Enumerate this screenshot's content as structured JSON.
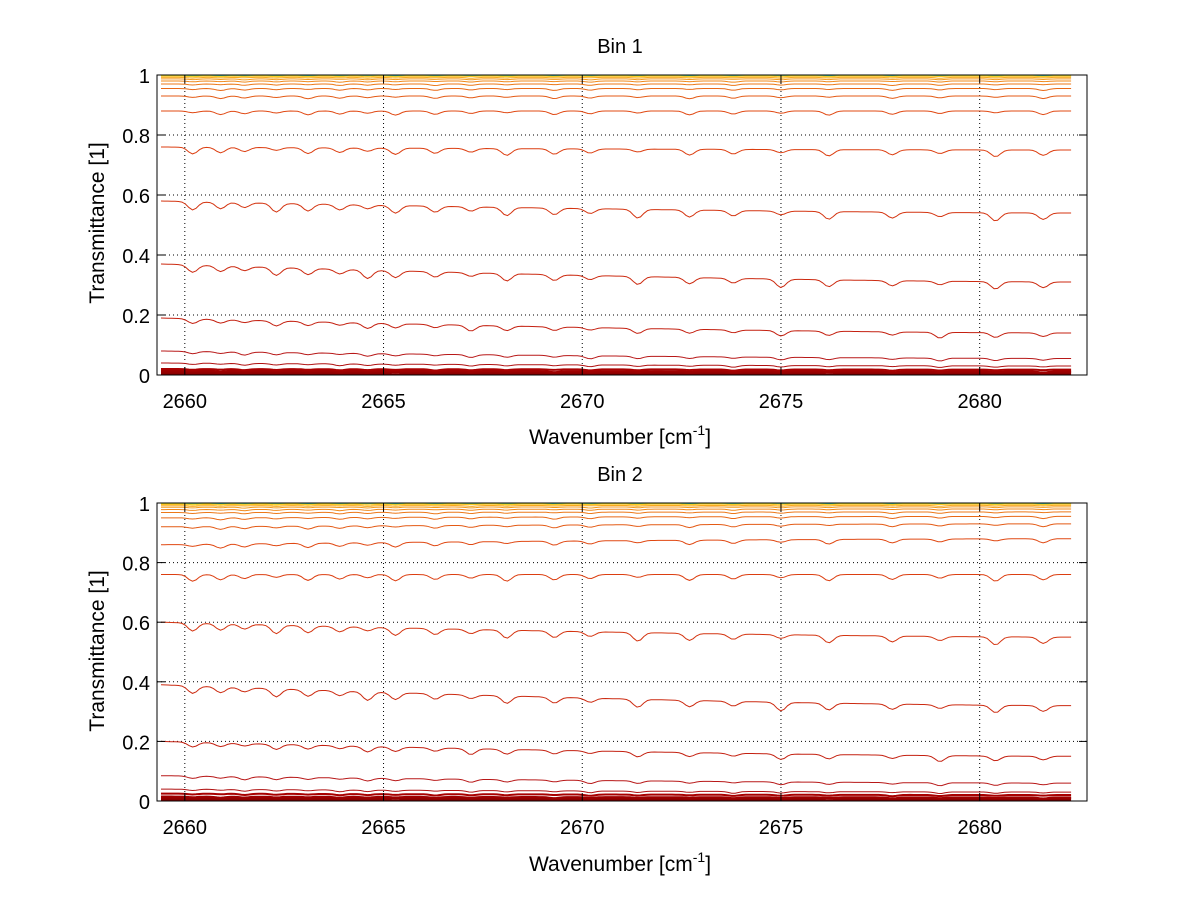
{
  "chart_data": [
    {
      "type": "line",
      "title": "Bin 1",
      "xlabel": "Wavenumber [cm",
      "xlabel_sup": "-1",
      "xlabel_end": "]",
      "ylabel": "Transmittance [1]",
      "xlim": [
        2659.3,
        2682.7
      ],
      "ylim": [
        0,
        1
      ],
      "xticks": [
        2660,
        2665,
        2670,
        2675,
        2680
      ],
      "xtick_labels": [
        "2660",
        "2665",
        "2670",
        "2675",
        "2680"
      ],
      "yticks": [
        0,
        0.2,
        0.4,
        0.6,
        0.8,
        1
      ],
      "ytick_labels": [
        "0",
        "0.2",
        "0.4",
        "0.6",
        "0.8",
        "1"
      ],
      "grid": true,
      "x_range": [
        2659.4,
        2682.3
      ],
      "absorption_lines": [
        2660.2,
        2660.9,
        2661.5,
        2662.3,
        2663.1,
        2663.9,
        2664.6,
        2665.3,
        2666.3,
        2667.2,
        2668.1,
        2669.3,
        2670.2,
        2671.4,
        2672.7,
        2673.8,
        2675.0,
        2676.2,
        2677.8,
        2679.0,
        2680.4,
        2681.6
      ],
      "series": [
        {
          "color": "#8b0000",
          "start": 0.005,
          "end": 0.005
        },
        {
          "color": "#940000",
          "start": 0.01,
          "end": 0.01
        },
        {
          "color": "#9e0000",
          "start": 0.015,
          "end": 0.012
        },
        {
          "color": "#a80000",
          "start": 0.02,
          "end": 0.018
        },
        {
          "color": "#b01010",
          "start": 0.04,
          "end": 0.03
        },
        {
          "color": "#b81818",
          "start": 0.08,
          "end": 0.055
        },
        {
          "color": "#c42010",
          "start": 0.19,
          "end": 0.14
        },
        {
          "color": "#cc2a10",
          "start": 0.37,
          "end": 0.31
        },
        {
          "color": "#d43410",
          "start": 0.58,
          "end": 0.54
        },
        {
          "color": "#dc3e10",
          "start": 0.76,
          "end": 0.75
        },
        {
          "color": "#e04812",
          "start": 0.88,
          "end": 0.88
        },
        {
          "color": "#e45a14",
          "start": 0.93,
          "end": 0.93
        },
        {
          "color": "#e86816",
          "start": 0.955,
          "end": 0.955
        },
        {
          "color": "#ec7818",
          "start": 0.97,
          "end": 0.97
        },
        {
          "color": "#f0881a",
          "start": 0.98,
          "end": 0.98
        },
        {
          "color": "#f4981c",
          "start": 0.987,
          "end": 0.987
        },
        {
          "color": "#f8aa1e",
          "start": 0.992,
          "end": 0.992
        },
        {
          "color": "#fcc020",
          "start": 0.996,
          "end": 0.996
        },
        {
          "color": "#ffd822",
          "start": 0.998,
          "end": 0.998
        },
        {
          "color": "#c8e040",
          "start": 0.999,
          "end": 0.999
        },
        {
          "color": "#40c8b0",
          "start": 1.0,
          "end": 1.0
        }
      ]
    },
    {
      "type": "line",
      "title": "Bin 2",
      "xlabel": "Wavenumber [cm",
      "xlabel_sup": "-1",
      "xlabel_end": "]",
      "ylabel": "Transmittance [1]",
      "xlim": [
        2659.3,
        2682.7
      ],
      "ylim": [
        0,
        1
      ],
      "xticks": [
        2660,
        2665,
        2670,
        2675,
        2680
      ],
      "xtick_labels": [
        "2660",
        "2665",
        "2670",
        "2675",
        "2680"
      ],
      "yticks": [
        0,
        0.2,
        0.4,
        0.6,
        0.8,
        1
      ],
      "ytick_labels": [
        "0",
        "0.2",
        "0.4",
        "0.6",
        "0.8",
        "1"
      ],
      "grid": true,
      "x_range": [
        2659.4,
        2682.3
      ],
      "absorption_lines": [
        2660.2,
        2660.9,
        2661.5,
        2662.3,
        2663.1,
        2663.9,
        2664.6,
        2665.3,
        2666.3,
        2667.2,
        2668.1,
        2669.3,
        2670.2,
        2671.4,
        2672.7,
        2673.8,
        2675.0,
        2676.2,
        2677.8,
        2679.0,
        2680.4,
        2681.6
      ],
      "series": [
        {
          "color": "#8b0000",
          "start": 0.005,
          "end": 0.005
        },
        {
          "color": "#940000",
          "start": 0.01,
          "end": 0.01
        },
        {
          "color": "#9e0000",
          "start": 0.015,
          "end": 0.012
        },
        {
          "color": "#a80000",
          "start": 0.025,
          "end": 0.02
        },
        {
          "color": "#b01010",
          "start": 0.04,
          "end": 0.03
        },
        {
          "color": "#b81818",
          "start": 0.085,
          "end": 0.06
        },
        {
          "color": "#c42010",
          "start": 0.2,
          "end": 0.15
        },
        {
          "color": "#cc2a10",
          "start": 0.39,
          "end": 0.32
        },
        {
          "color": "#d43410",
          "start": 0.6,
          "end": 0.55
        },
        {
          "color": "#dc3e10",
          "start": 0.76,
          "end": 0.76
        },
        {
          "color": "#e04812",
          "start": 0.86,
          "end": 0.88
        },
        {
          "color": "#e45a14",
          "start": 0.92,
          "end": 0.93
        },
        {
          "color": "#e86816",
          "start": 0.95,
          "end": 0.955
        },
        {
          "color": "#ec7818",
          "start": 0.968,
          "end": 0.97
        },
        {
          "color": "#f0881a",
          "start": 0.978,
          "end": 0.98
        },
        {
          "color": "#f4981c",
          "start": 0.986,
          "end": 0.987
        },
        {
          "color": "#f8aa1e",
          "start": 0.991,
          "end": 0.992
        },
        {
          "color": "#fcc020",
          "start": 0.995,
          "end": 0.996
        },
        {
          "color": "#ffd822",
          "start": 0.998,
          "end": 0.998
        },
        {
          "color": "#c8e040",
          "start": 0.999,
          "end": 0.999
        },
        {
          "color": "#40c8b0",
          "start": 1.0,
          "end": 1.0
        }
      ]
    }
  ]
}
